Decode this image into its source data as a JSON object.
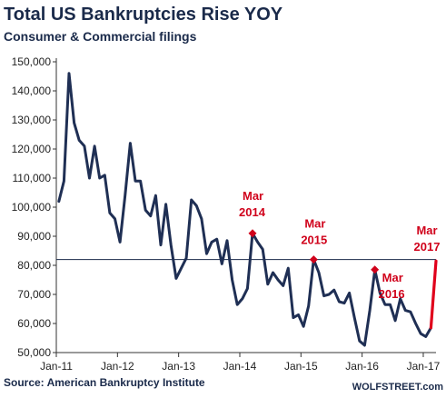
{
  "chart_data": {
    "type": "line",
    "title": "Total US Bankruptcies Rise YOY",
    "subtitle": "Consumer & Commercial filings",
    "source": "Source: American Bankruptcy Institute",
    "brand": "WOLFSTREET.com",
    "ylim": [
      50000,
      150000
    ],
    "y_ticks": [
      50000,
      60000,
      70000,
      80000,
      90000,
      100000,
      110000,
      120000,
      130000,
      140000,
      150000
    ],
    "y_tick_labels": [
      "50,000",
      "60,000",
      "70,000",
      "80,000",
      "90,000",
      "100,000",
      "110,000",
      "120,000",
      "130,000",
      "140,000",
      "150,000"
    ],
    "x_ticks": [
      "2011-01",
      "2012-01",
      "2013-01",
      "2014-01",
      "2015-01",
      "2016-01",
      "2017-01"
    ],
    "x_tick_labels": [
      "Jan-11",
      "Jan-12",
      "Jan-13",
      "Jan-14",
      "Jan-15",
      "Jan-16",
      "Jan-17"
    ],
    "reference_line": {
      "y": 82000,
      "color": "#1a2a4a"
    },
    "series": [
      {
        "color": "#1f2f54",
        "x": [
          "2011-01",
          "2011-02",
          "2011-03",
          "2011-04",
          "2011-05",
          "2011-06",
          "2011-07",
          "2011-08",
          "2011-09",
          "2011-10",
          "2011-11",
          "2011-12",
          "2012-01",
          "2012-02",
          "2012-03",
          "2012-04",
          "2012-05",
          "2012-06",
          "2012-07",
          "2012-08",
          "2012-09",
          "2012-10",
          "2012-11",
          "2012-12",
          "2013-01",
          "2013-02",
          "2013-03",
          "2013-04",
          "2013-05",
          "2013-06",
          "2013-07",
          "2013-08",
          "2013-09",
          "2013-10",
          "2013-11",
          "2013-12",
          "2014-01",
          "2014-02",
          "2014-03",
          "2014-04",
          "2014-05",
          "2014-06",
          "2014-07",
          "2014-08",
          "2014-09",
          "2014-10",
          "2014-11",
          "2014-12",
          "2015-01",
          "2015-02",
          "2015-03",
          "2015-04",
          "2015-05",
          "2015-06",
          "2015-07",
          "2015-08",
          "2015-09",
          "2015-10",
          "2015-11",
          "2015-12",
          "2016-01",
          "2016-02",
          "2016-03",
          "2016-04",
          "2016-05",
          "2016-06",
          "2016-07",
          "2016-08",
          "2016-09",
          "2016-10",
          "2016-11",
          "2016-12",
          "2017-01",
          "2017-02"
        ],
        "values": [
          102000,
          109000,
          146000,
          129000,
          123000,
          121000,
          110000,
          121000,
          110000,
          111000,
          98000,
          96000,
          88000,
          104000,
          122000,
          109000,
          109000,
          99000,
          97000,
          104000,
          87000,
          101000,
          87000,
          75500,
          79000,
          82500,
          102500,
          100500,
          96000,
          84000,
          88000,
          89000,
          80500,
          88500,
          75000,
          66500,
          68500,
          72000,
          91000,
          88000,
          85500,
          73500,
          77500,
          75000,
          73000,
          79000,
          62000,
          63000,
          59000,
          66000,
          82000,
          77500,
          69500,
          70000,
          71500,
          67500,
          67000,
          70500,
          62000,
          54000,
          52500,
          64500,
          78500,
          70500,
          66500,
          66500,
          61000,
          68500,
          64500,
          64000,
          60000,
          56500,
          55500,
          58500
        ]
      },
      {
        "name_hidden": true,
        "color": "#e0001b",
        "x": [
          "2017-02",
          "2017-03"
        ],
        "values": [
          58500,
          81500
        ]
      }
    ],
    "highlight_points": [
      {
        "x": "2014-03",
        "y": 91000,
        "label_line1": "Mar",
        "label_line2": "2014"
      },
      {
        "x": "2015-03",
        "y": 82000,
        "label_line1": "Mar",
        "label_line2": "2015"
      },
      {
        "x": "2016-03",
        "y": 78500,
        "label_line1": "Mar",
        "label_line2": "2016"
      }
    ],
    "end_annotation": {
      "label_line1": "Mar",
      "label_line2": "2017"
    },
    "colors": {
      "line": "#1f2f54",
      "highlight": "#d0021b",
      "latest": "#e0001b",
      "axis": "#333333"
    }
  }
}
